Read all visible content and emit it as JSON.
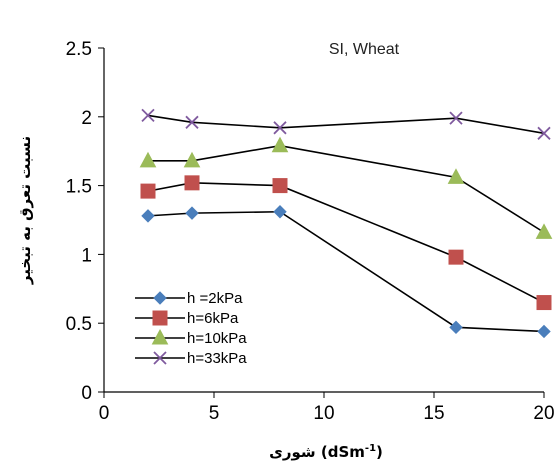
{
  "chart_data": {
    "type": "line",
    "title": "SI, Wheat",
    "xlabel": "شوری (dSm-1)",
    "xlabel_parts": {
      "word": "شوری",
      "open": "(dSm",
      "sup": "-1",
      "close": ")"
    },
    "ylabel": "نسبت تعرق به تبخیر",
    "xlim": [
      0,
      20
    ],
    "ylim": [
      0,
      2.5
    ],
    "xticks": [
      0,
      5,
      10,
      15,
      20
    ],
    "yticks": [
      0,
      0.5,
      1,
      1.5,
      2,
      2.5
    ],
    "ytick_labels": [
      "0",
      "0.5",
      "1",
      "1.5",
      "2",
      "2.5"
    ],
    "grid": false,
    "legend_position": "lower-left",
    "series": [
      {
        "name": "h =2kPa",
        "marker": "diamond",
        "color": "#4a7ebb",
        "x": [
          2,
          4,
          8,
          16,
          20
        ],
        "y": [
          1.28,
          1.3,
          1.31,
          0.47,
          0.44
        ]
      },
      {
        "name": "h=6kPa",
        "marker": "square",
        "color": "#c0504d",
        "x": [
          2,
          4,
          8,
          16,
          20
        ],
        "y": [
          1.46,
          1.52,
          1.5,
          0.98,
          0.65
        ]
      },
      {
        "name": "h=10kPa",
        "marker": "triangle",
        "color": "#9bbb59",
        "x": [
          2,
          4,
          8,
          16,
          20
        ],
        "y": [
          1.68,
          1.68,
          1.79,
          1.56,
          1.16
        ]
      },
      {
        "name": "h=33kPa",
        "marker": "x",
        "color": "#7f5a9e",
        "x": [
          2,
          4,
          8,
          16,
          20
        ],
        "y": [
          2.01,
          1.96,
          1.92,
          1.99,
          1.88
        ]
      }
    ]
  }
}
